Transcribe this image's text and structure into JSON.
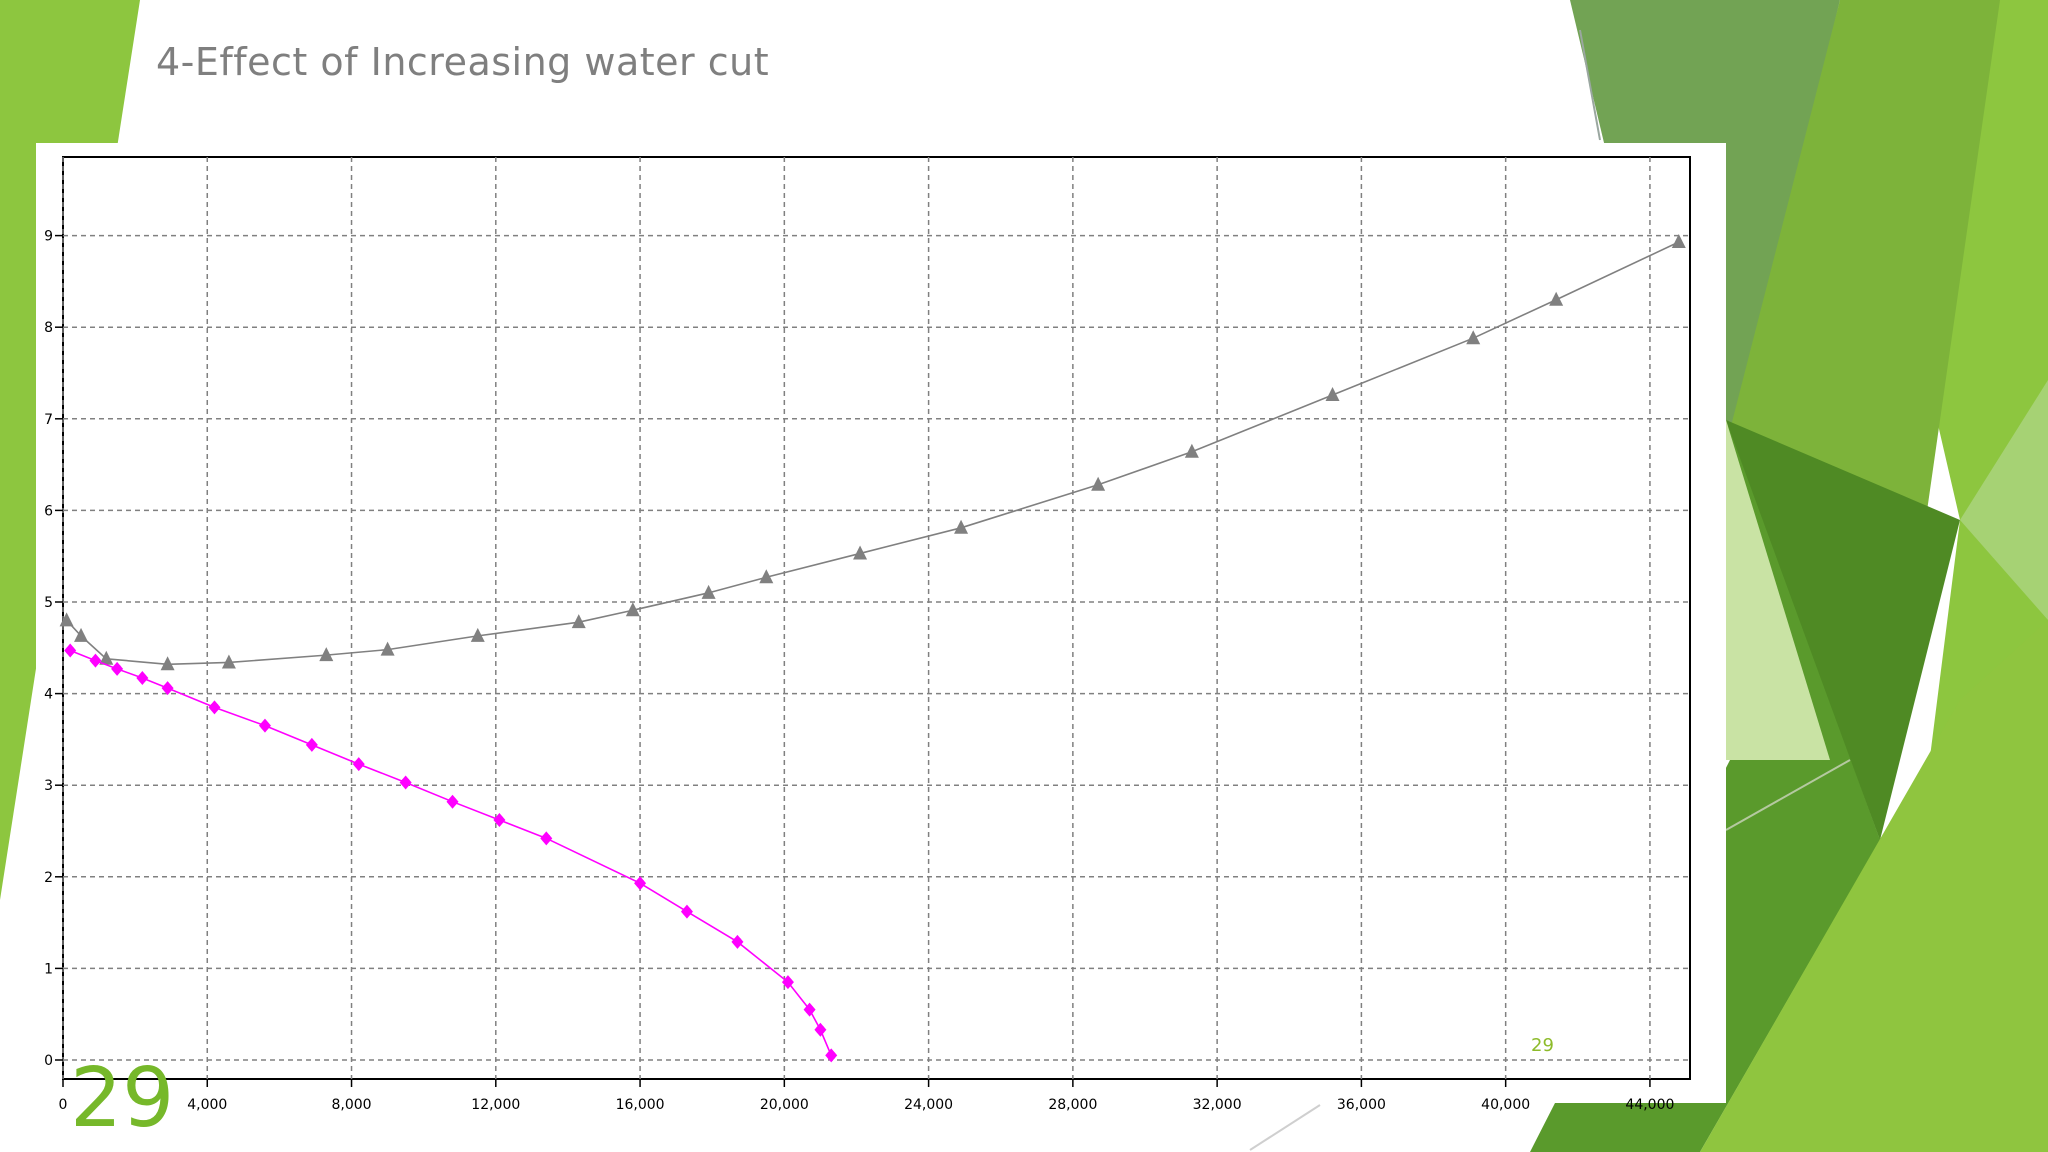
{
  "slide": {
    "title": "4-Effect of Increasing water cut",
    "slide_number": "29",
    "accent_colors": [
      "#8dc63f",
      "#6aa534",
      "#4f8a24",
      "#a8d37a"
    ]
  },
  "chart_data": {
    "type": "line",
    "title": "",
    "xlabel": "",
    "ylabel": "",
    "grid": true,
    "xlim": [
      0,
      45000
    ],
    "ylim": [
      0,
      10
    ],
    "x_ticks": [
      0,
      4000,
      8000,
      12000,
      16000,
      20000,
      24000,
      28000,
      32000,
      36000,
      40000,
      44000
    ],
    "y_ticks": [
      0,
      1,
      2,
      3,
      4,
      5,
      6,
      7,
      8,
      9
    ],
    "inner_label": "29",
    "series": [
      {
        "color": "#808080",
        "marker": "triangle",
        "x": [
          100,
          500,
          1200,
          2900,
          4600,
          7300,
          9000,
          11500,
          14300,
          15800,
          17900,
          19500,
          22100,
          24900,
          28700,
          31300,
          35200,
          39100,
          41400,
          44800
        ],
        "y": [
          4.8,
          4.63,
          4.38,
          4.32,
          4.34,
          4.42,
          4.48,
          4.63,
          4.78,
          4.91,
          5.1,
          5.27,
          5.53,
          5.81,
          6.28,
          6.64,
          7.26,
          7.88,
          8.3,
          8.93
        ]
      },
      {
        "color": "#ff00ff",
        "marker": "diamond",
        "x": [
          200,
          900,
          1500,
          2200,
          2900,
          4200,
          5600,
          6900,
          8200,
          9500,
          10800,
          12100,
          13400,
          16000,
          17300,
          18700,
          20100,
          20700,
          21000,
          21300
        ],
        "y": [
          4.47,
          4.36,
          4.27,
          4.17,
          4.06,
          3.85,
          3.65,
          3.44,
          3.23,
          3.03,
          2.82,
          2.62,
          2.42,
          1.93,
          1.62,
          1.29,
          0.85,
          0.55,
          0.33,
          0.05
        ]
      }
    ]
  }
}
